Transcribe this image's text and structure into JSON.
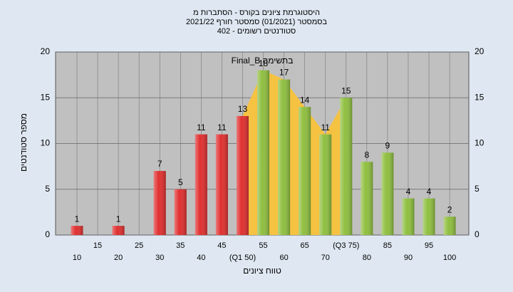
{
  "chart_data": {
    "type": "bar",
    "title": [
      "היסטוגרמת ציונים בקורס - הסתברות מ",
      "בסמסטר  (01/2021)  סמסטר חורף 2021/22",
      "402 - סטודנטים רשומים"
    ],
    "xlabel": "טווח ציונים",
    "ylabel": "מספר סטודנטים",
    "annotation": "Final_B בתשימה",
    "categories": [
      "10",
      "15",
      "20",
      "25",
      "30",
      "35",
      "40",
      "45",
      "(Q1 50)",
      "55",
      "60",
      "65",
      "70",
      "(Q3 75)",
      "80",
      "85",
      "90",
      "95",
      "100"
    ],
    "values": [
      1,
      0,
      1,
      0,
      7,
      5,
      11,
      11,
      13,
      18,
      17,
      14,
      11,
      15,
      8,
      9,
      4,
      4,
      2
    ],
    "colors": [
      "#e03030",
      "#e03030",
      "#e03030",
      "#e03030",
      "#e03030",
      "#e03030",
      "#e03030",
      "#e03030",
      "#e03030",
      "#8fbf40",
      "#8fbf40",
      "#8fbf40",
      "#8fbf40",
      "#8fbf40",
      "#8fbf40",
      "#8fbf40",
      "#8fbf40",
      "#8fbf40",
      "#8fbf40"
    ],
    "quartile_fill": "#f5c242",
    "ylim": [
      0,
      20
    ],
    "yticks": [
      0,
      5,
      10,
      15,
      20
    ],
    "grid": true
  }
}
